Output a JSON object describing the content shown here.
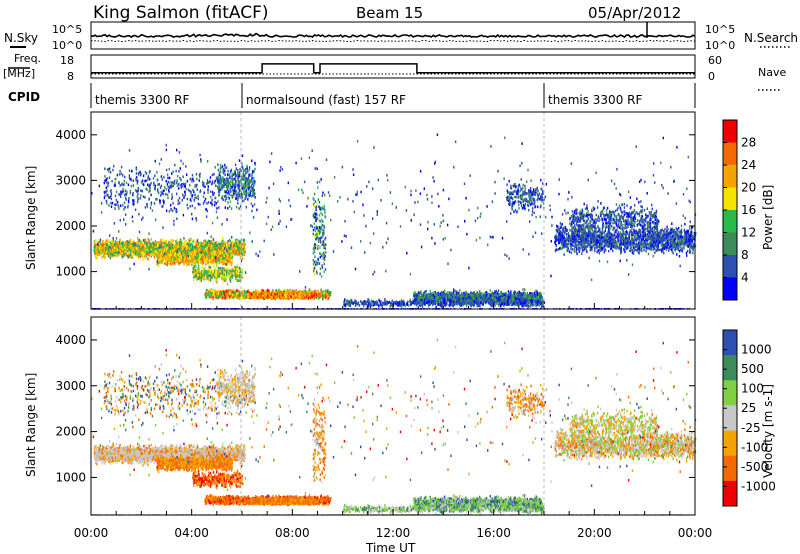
{
  "header": {
    "station": "King Salmon (fitACF)",
    "beam": "Beam 15",
    "date": "05/Apr/2012"
  },
  "labels": {
    "nsky": "N.Sky",
    "nsearch": "N.Search",
    "freq": "Freq.",
    "freq_unit": "[MHz]",
    "nave": "Nave",
    "cpid": "CPID",
    "ten5": "10^5",
    "ten0": "10^0"
  },
  "cpid_segments": [
    {
      "label": "themis 3300 RF",
      "start_h": 0.0
    },
    {
      "label": "normalsound (fast) 157 RF",
      "start_h": 6.0
    },
    {
      "label": "themis 3300 RF",
      "start_h": 18.0
    }
  ],
  "colors": {
    "power": [
      "#0000ff",
      "#2c4fb0",
      "#3c8c5a",
      "#2bb94a",
      "#f5e400",
      "#f5a300",
      "#f56a00",
      "#f00000"
    ],
    "velocity": [
      "#f00000",
      "#f56a00",
      "#f5a300",
      "#c8c8c8",
      "#7fd042",
      "#3c8c5a",
      "#2c4fb0"
    ]
  },
  "chart_data": [
    {
      "type": "line",
      "name": "noise-panel",
      "xlim": [
        0,
        24
      ],
      "ylim_left": [
        "10^0",
        "10^5"
      ],
      "ylim_right": [
        "10^0",
        "10^5"
      ],
      "left_label": "N.Sky",
      "right_label": "N.Search"
    },
    {
      "type": "line",
      "name": "freq-nave-panel",
      "xlim": [
        0,
        24
      ],
      "left_ticks": [
        8,
        18
      ],
      "right_ticks": [
        0,
        60
      ],
      "freq_steps": [
        {
          "x0": 0.0,
          "x1": 6.8,
          "freq": 10.7
        },
        {
          "x0": 6.8,
          "x1": 8.85,
          "freq": 16.2
        },
        {
          "x0": 8.85,
          "x1": 9.1,
          "freq": 10.7
        },
        {
          "x0": 9.1,
          "x1": 12.95,
          "freq": 16.2
        },
        {
          "x0": 12.95,
          "x1": 24.0,
          "freq": 10.7
        }
      ]
    },
    {
      "type": "heatmap",
      "quantity": "power",
      "ylabel": "Slant Range [km]",
      "colorbar_label": "Power [dB]",
      "colorbar_ticks": [
        "28",
        "24",
        "20",
        "16",
        "12",
        "8",
        "4"
      ],
      "yticks": [
        1000,
        2000,
        3000,
        4000
      ],
      "ylim": [
        180,
        4500
      ],
      "xlim": [
        0,
        24
      ]
    },
    {
      "type": "heatmap",
      "quantity": "velocity",
      "ylabel": "Slant Range [km]",
      "colorbar_label": "Velocity [m s-1]",
      "colorbar_ticks": [
        "1000",
        "500",
        "100",
        "25",
        "-25",
        "-100",
        "-500",
        "-1000"
      ],
      "yticks": [
        1000,
        2000,
        3000,
        4000
      ],
      "ylim": [
        180,
        4500
      ],
      "xlim": [
        0,
        24
      ],
      "xticks": [
        "00:00",
        "04:00",
        "08:00",
        "12:00",
        "16:00",
        "20:00",
        "00:00"
      ],
      "xlabel": "Time UT"
    }
  ]
}
